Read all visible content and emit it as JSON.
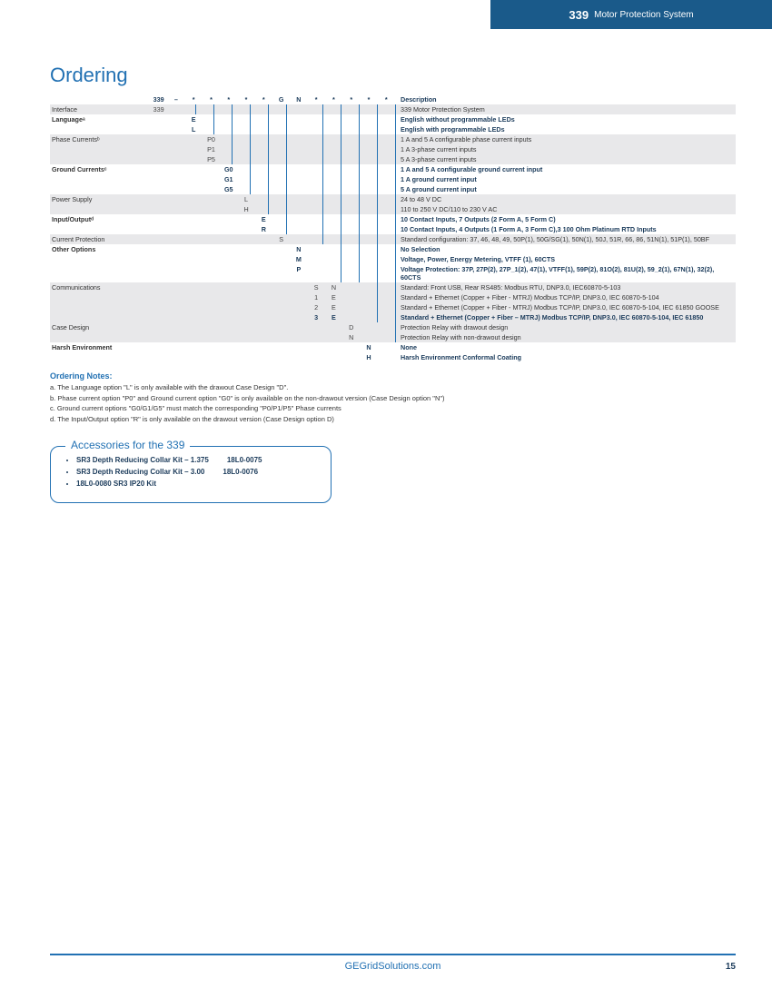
{
  "header": {
    "number": "339",
    "title": "Motor Protection System"
  },
  "page_number": "15",
  "footer_url": "GEGridSolutions.com",
  "ordering": {
    "title": "Ordering",
    "header_codes": [
      "339",
      "–",
      "*",
      "*",
      "*",
      "*",
      "*",
      "G",
      "N",
      "*",
      "*",
      "*",
      "*",
      "*"
    ],
    "desc_header": "Description",
    "groups": [
      {
        "label": "Interface",
        "shade": true,
        "bold": false,
        "rows": [
          {
            "codes": {
              "0": "339"
            },
            "desc": "339 Motor Protection System",
            "bold": false
          }
        ]
      },
      {
        "label": "Languageᵃ",
        "shade": false,
        "bold": true,
        "rows": [
          {
            "codes": {
              "2": "E"
            },
            "desc": "English without programmable LEDs",
            "bold": true
          },
          {
            "codes": {
              "2": "L"
            },
            "desc": "English with programmable LEDs",
            "bold": true
          }
        ]
      },
      {
        "label": "Phase Currentsᵇ",
        "shade": true,
        "bold": false,
        "rows": [
          {
            "codes": {
              "3": "P0"
            },
            "desc": "1 A and 5 A configurable phase current inputs",
            "bold": false
          },
          {
            "codes": {
              "3": "P1"
            },
            "desc": "1 A 3-phase current inputs",
            "bold": false
          },
          {
            "codes": {
              "3": "P5"
            },
            "desc": "5 A 3-phase current inputs",
            "bold": false
          }
        ]
      },
      {
        "label": "Ground Currentsᶜ",
        "shade": false,
        "bold": true,
        "rows": [
          {
            "codes": {
              "4": "G0"
            },
            "desc": "1 A and 5 A configurable ground current input",
            "bold": true
          },
          {
            "codes": {
              "4": "G1"
            },
            "desc": "1 A ground current input",
            "bold": true
          },
          {
            "codes": {
              "4": "G5"
            },
            "desc": "5 A ground current input",
            "bold": true
          }
        ]
      },
      {
        "label": "Power Supply",
        "shade": true,
        "bold": false,
        "rows": [
          {
            "codes": {
              "5": "L"
            },
            "desc": "24 to 48 V DC",
            "bold": false
          },
          {
            "codes": {
              "5": "H"
            },
            "desc": "110 to 250 V DC/110 to 230 V AC",
            "bold": false
          }
        ]
      },
      {
        "label": "Input/Outputᵈ",
        "shade": false,
        "bold": true,
        "rows": [
          {
            "codes": {
              "6": "E"
            },
            "desc": "10 Contact Inputs, 7 Outputs (2 Form A, 5 Form C)",
            "bold": true
          },
          {
            "codes": {
              "6": "R"
            },
            "desc": "10 Contact Inputs, 4 Outputs (1 Form A, 3 Form C),3 100 Ohm Platinum RTD Inputs",
            "bold": true
          }
        ]
      },
      {
        "label": "Current Protection",
        "shade": true,
        "bold": false,
        "rows": [
          {
            "codes": {
              "7": "S"
            },
            "desc": "Standard configuration: 37, 46, 48, 49, 50P(1), 50G/SG(1), 50N(1), 50J, 51R, 66, 86, 51N(1), 51P(1), 50BF",
            "bold": false
          }
        ]
      },
      {
        "label": "Other Options",
        "shade": false,
        "bold": true,
        "rows": [
          {
            "codes": {
              "8": "N"
            },
            "desc": "No Selection",
            "bold": true
          },
          {
            "codes": {
              "8": "M"
            },
            "desc": "Voltage, Power, Energy Metering, VTFF (1), 60CTS",
            "bold": true
          },
          {
            "codes": {
              "8": "P"
            },
            "desc": "Voltage Protection: 37P, 27P(2), 27P_1(2), 47(1), VTFF(1), 59P(2), 81O(2), 81U(2), 59_2(1), 67N(1), 32(2), 60CTS",
            "bold": true
          }
        ]
      },
      {
        "label": "Communications",
        "shade": true,
        "bold": false,
        "rows": [
          {
            "codes": {
              "9": "S",
              "10": "N"
            },
            "desc": "Standard: Front USB, Rear RS485: Modbus RTU, DNP3.0, IEC60870-5-103",
            "bold": false
          },
          {
            "codes": {
              "9": "1",
              "10": "E"
            },
            "desc": "Standard + Ethernet (Copper + Fiber - MTRJ) Modbus TCP/IP, DNP3.0, IEC 60870-5-104",
            "bold": false
          },
          {
            "codes": {
              "9": "2",
              "10": "E"
            },
            "desc": "Standard + Ethernet (Copper + Fiber - MTRJ) Modbus TCP/IP, DNP3.0, IEC 60870-5-104, IEC 61850 GOOSE",
            "bold": false
          },
          {
            "codes": {
              "9": "3",
              "10": "E"
            },
            "desc": "Standard + Ethernet (Copper + Fiber – MTRJ) Modbus TCP/IP, DNP3.0, IEC 60870-5-104, IEC 61850",
            "bold": true
          }
        ]
      },
      {
        "label": "Case Design",
        "shade": true,
        "bold": false,
        "rows": [
          {
            "codes": {
              "11": "D"
            },
            "desc": "Protection Relay with drawout design",
            "bold": false
          },
          {
            "codes": {
              "11": "N"
            },
            "desc": "Protection Relay with non-drawout design",
            "bold": false
          }
        ]
      },
      {
        "label": "Harsh Environment",
        "shade": false,
        "bold": true,
        "rows": [
          {
            "codes": {
              "12": "N"
            },
            "desc": "None",
            "bold": true
          },
          {
            "codes": {
              "12": "H"
            },
            "desc": "Harsh Environment Conformal Coating",
            "bold": true
          }
        ]
      }
    ],
    "vlines": [
      {
        "col": 2,
        "from": 0,
        "to": 1
      },
      {
        "col": 3,
        "from": 0,
        "to": 3
      },
      {
        "col": 4,
        "from": 0,
        "to": 6
      },
      {
        "col": 5,
        "from": 0,
        "to": 9
      },
      {
        "col": 6,
        "from": 0,
        "to": 11
      },
      {
        "col": 7,
        "from": 0,
        "to": 13
      },
      {
        "col": 9,
        "from": 0,
        "to": 14
      },
      {
        "col": 10,
        "from": 0,
        "to": 17
      },
      {
        "col": 11,
        "from": 0,
        "to": 17
      },
      {
        "col": 12,
        "from": 0,
        "to": 21
      },
      {
        "col": 13,
        "from": 0,
        "to": 23
      }
    ]
  },
  "notes": {
    "title": "Ordering Notes:",
    "items": [
      "a. The Language option \"L\" is only available with the drawout Case Design \"D\".",
      "b. Phase current option \"P0\" and Ground current option \"G0\" is only available on the non-drawout version (Case Design option \"N\")",
      "c. Ground current options \"G0/G1/G5\" must match the corresponding \"P0/P1/P5\" Phase currents",
      "d. The Input/Output option \"R\" is only available on the drawout version (Case Design option D)"
    ]
  },
  "accessories": {
    "title": "Accessories for the 339",
    "items": [
      {
        "name": "SR3 Depth Reducing Collar Kit – 1.375",
        "pn": "18L0-0075"
      },
      {
        "name": "SR3 Depth Reducing Collar Kit – 3.00",
        "pn": "18L0-0076"
      },
      {
        "name": "18L0-0080 SR3 IP20 Kit",
        "pn": ""
      }
    ]
  },
  "colors": {
    "brand_blue": "#2271b3",
    "banner_blue": "#1a5a8a",
    "shade_grey": "#e8e8ea"
  }
}
